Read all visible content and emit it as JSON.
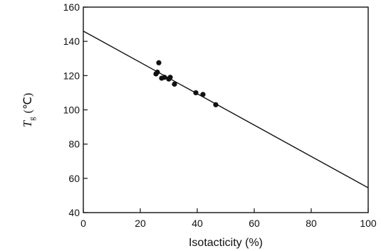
{
  "chart_data": {
    "type": "scatter",
    "title": "",
    "xlabel": "Isotacticity (%)",
    "ylabel": {
      "symbol": "T",
      "subscript": "g",
      "unit": "(℃)"
    },
    "xlim": [
      0,
      100
    ],
    "ylim": [
      40,
      160
    ],
    "xticks": [
      "0",
      "20",
      "40",
      "60",
      "80",
      "100"
    ],
    "yticks": [
      "40",
      "60",
      "80",
      "100",
      "120",
      "140",
      "160"
    ],
    "grid": false,
    "legend": "none",
    "points": [
      {
        "x": 25.5,
        "y": 121
      },
      {
        "x": 26.0,
        "y": 122
      },
      {
        "x": 26.5,
        "y": 127.5
      },
      {
        "x": 27.5,
        "y": 118.5
      },
      {
        "x": 28.5,
        "y": 119
      },
      {
        "x": 30.0,
        "y": 118
      },
      {
        "x": 30.5,
        "y": 119
      },
      {
        "x": 32.0,
        "y": 115
      },
      {
        "x": 39.5,
        "y": 110
      },
      {
        "x": 42.0,
        "y": 109
      },
      {
        "x": 46.5,
        "y": 103
      }
    ],
    "fit_line": {
      "x": [
        0,
        100
      ],
      "y": [
        146,
        54.5
      ]
    },
    "colors": {
      "marks": "#111111",
      "background": "#ffffff"
    }
  }
}
